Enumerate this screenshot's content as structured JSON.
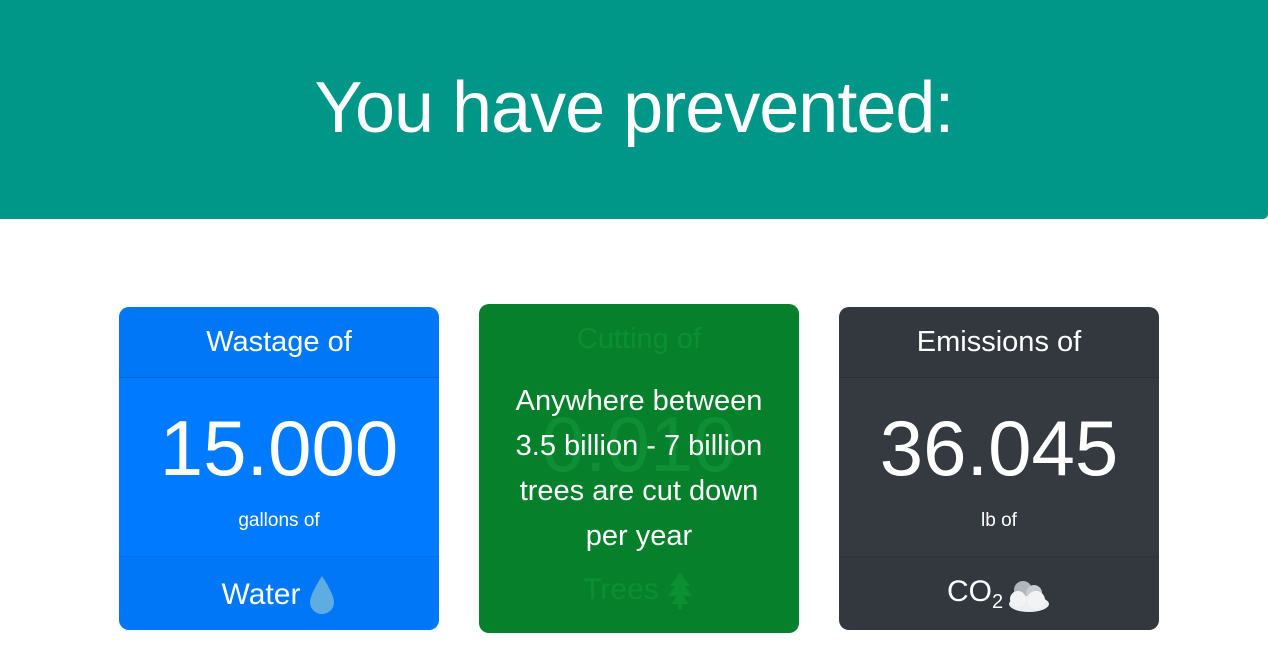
{
  "hero": {
    "title": "You have prevented:",
    "background": "#009688"
  },
  "cards": [
    {
      "header": "Wastage of",
      "value": "15.000",
      "unit": "gallons of",
      "footer": "Water",
      "icon": "water-drop-icon",
      "color": "#007bff"
    },
    {
      "header": "Cutting of",
      "value": "0.010",
      "unit": "",
      "footer": "Trees",
      "icon": "tree-icon",
      "color": "#06802b",
      "overlay": "Anywhere between 3.5 billion - 7 billion trees are cut down per year"
    },
    {
      "header": "Emissions of",
      "value": "36.045",
      "unit": "lb of",
      "footer": "CO",
      "footer_sub": "2",
      "icon": "cloud-icon",
      "color": "#343a40"
    }
  ]
}
